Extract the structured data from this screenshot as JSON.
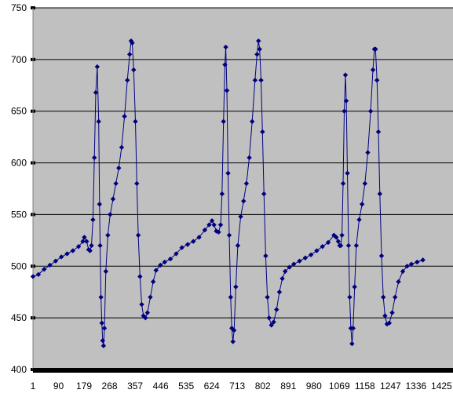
{
  "chart_data": {
    "type": "line",
    "title": "",
    "xlabel": "",
    "ylabel": "",
    "ylim": [
      400,
      750
    ],
    "xlim": [
      1,
      1465
    ],
    "yticks": [
      400,
      450,
      500,
      550,
      600,
      650,
      700,
      750
    ],
    "xticks": [
      1,
      90,
      179,
      268,
      357,
      446,
      535,
      624,
      713,
      802,
      891,
      980,
      1069,
      1158,
      1247,
      1336,
      1425
    ],
    "grid": "horizontal",
    "legend": "none",
    "colors": {
      "plot_bg": "#c0c0c0",
      "series": "#000080",
      "grid": "#000000"
    },
    "series": [
      {
        "marker": "diamond",
        "points": [
          [
            1,
            490
          ],
          [
            20,
            492
          ],
          [
            40,
            497
          ],
          [
            60,
            501
          ],
          [
            80,
            505
          ],
          [
            100,
            509
          ],
          [
            120,
            512
          ],
          [
            140,
            515
          ],
          [
            160,
            519
          ],
          [
            175,
            524
          ],
          [
            180,
            528
          ],
          [
            188,
            524
          ],
          [
            195,
            516
          ],
          [
            200,
            515
          ],
          [
            205,
            520
          ],
          [
            210,
            545
          ],
          [
            215,
            605
          ],
          [
            220,
            668
          ],
          [
            225,
            693
          ],
          [
            230,
            640
          ],
          [
            233,
            560
          ],
          [
            235,
            520
          ],
          [
            238,
            470
          ],
          [
            241,
            445
          ],
          [
            244,
            428
          ],
          [
            247,
            423
          ],
          [
            250,
            440
          ],
          [
            255,
            495
          ],
          [
            262,
            530
          ],
          [
            270,
            550
          ],
          [
            280,
            565
          ],
          [
            290,
            580
          ],
          [
            300,
            595
          ],
          [
            310,
            615
          ],
          [
            320,
            645
          ],
          [
            330,
            680
          ],
          [
            338,
            705
          ],
          [
            343,
            718
          ],
          [
            347,
            716
          ],
          [
            352,
            690
          ],
          [
            358,
            640
          ],
          [
            363,
            580
          ],
          [
            368,
            530
          ],
          [
            374,
            490
          ],
          [
            380,
            463
          ],
          [
            386,
            452
          ],
          [
            393,
            450
          ],
          [
            400,
            455
          ],
          [
            410,
            470
          ],
          [
            420,
            485
          ],
          [
            430,
            496
          ],
          [
            445,
            501
          ],
          [
            460,
            504
          ],
          [
            480,
            507
          ],
          [
            500,
            512
          ],
          [
            520,
            518
          ],
          [
            540,
            521
          ],
          [
            560,
            524
          ],
          [
            580,
            528
          ],
          [
            600,
            535
          ],
          [
            615,
            540
          ],
          [
            625,
            544
          ],
          [
            632,
            540
          ],
          [
            640,
            534
          ],
          [
            648,
            533
          ],
          [
            655,
            540
          ],
          [
            660,
            570
          ],
          [
            665,
            640
          ],
          [
            670,
            695
          ],
          [
            673,
            712
          ],
          [
            677,
            670
          ],
          [
            681,
            590
          ],
          [
            685,
            530
          ],
          [
            690,
            470
          ],
          [
            694,
            440
          ],
          [
            698,
            427
          ],
          [
            702,
            438
          ],
          [
            708,
            480
          ],
          [
            715,
            520
          ],
          [
            725,
            548
          ],
          [
            735,
            563
          ],
          [
            745,
            580
          ],
          [
            755,
            605
          ],
          [
            765,
            640
          ],
          [
            775,
            680
          ],
          [
            782,
            705
          ],
          [
            787,
            718
          ],
          [
            791,
            710
          ],
          [
            796,
            680
          ],
          [
            801,
            630
          ],
          [
            806,
            570
          ],
          [
            812,
            510
          ],
          [
            818,
            470
          ],
          [
            824,
            450
          ],
          [
            832,
            443
          ],
          [
            840,
            446
          ],
          [
            850,
            458
          ],
          [
            860,
            475
          ],
          [
            870,
            488
          ],
          [
            880,
            495
          ],
          [
            895,
            499
          ],
          [
            910,
            502
          ],
          [
            930,
            505
          ],
          [
            950,
            508
          ],
          [
            970,
            511
          ],
          [
            990,
            515
          ],
          [
            1010,
            519
          ],
          [
            1030,
            523
          ],
          [
            1050,
            530
          ],
          [
            1058,
            528
          ],
          [
            1065,
            524
          ],
          [
            1070,
            520
          ],
          [
            1074,
            520
          ],
          [
            1078,
            530
          ],
          [
            1082,
            580
          ],
          [
            1086,
            650
          ],
          [
            1090,
            685
          ],
          [
            1093,
            660
          ],
          [
            1097,
            590
          ],
          [
            1101,
            520
          ],
          [
            1105,
            470
          ],
          [
            1109,
            440
          ],
          [
            1113,
            425
          ],
          [
            1117,
            440
          ],
          [
            1122,
            480
          ],
          [
            1128,
            520
          ],
          [
            1138,
            545
          ],
          [
            1148,
            560
          ],
          [
            1158,
            580
          ],
          [
            1168,
            610
          ],
          [
            1178,
            650
          ],
          [
            1186,
            690
          ],
          [
            1191,
            710
          ],
          [
            1195,
            710
          ],
          [
            1200,
            680
          ],
          [
            1205,
            630
          ],
          [
            1210,
            570
          ],
          [
            1216,
            510
          ],
          [
            1222,
            470
          ],
          [
            1228,
            452
          ],
          [
            1235,
            444
          ],
          [
            1243,
            445
          ],
          [
            1253,
            455
          ],
          [
            1263,
            470
          ],
          [
            1275,
            485
          ],
          [
            1290,
            495
          ],
          [
            1305,
            500
          ],
          [
            1320,
            502
          ],
          [
            1340,
            504
          ],
          [
            1360,
            506
          ]
        ]
      }
    ]
  }
}
